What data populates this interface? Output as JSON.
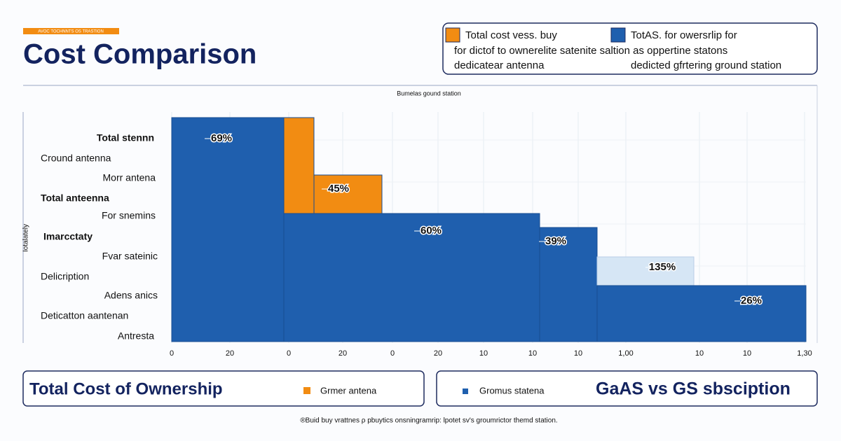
{
  "header": {
    "kicker": "AVOC TOCHNNTS OS TRASTION",
    "title": "Cost Comparison"
  },
  "legend": {
    "items": [
      {
        "color": "#f28c12",
        "label": "Total cost vess. buy"
      },
      {
        "color": "#1f5fae",
        "label": "TotAS. for owersrlip for"
      }
    ],
    "line2": "for dictof to ownerelite satenite saltion as oppertine statons",
    "line3a": "dedicatear antenna",
    "line3b": "dedicted gfrtering ground station"
  },
  "chart": {
    "subtitle": "Bumelas gound station",
    "y_axis_title": "Iotalately",
    "row_labels": [
      "Total stennn",
      "Cround antenna",
      "Morr antena",
      "Total anteenna",
      "For snemins",
      "Imarcctaty",
      "Fvar sateinic",
      "Delicription",
      "Adens anics",
      "Deticatton aantenan",
      "Antresta"
    ],
    "x_tick_labels": [
      "0",
      "20",
      "0",
      "20",
      "0",
      "20",
      "10",
      "10",
      "10",
      "1,00",
      "10",
      "10",
      "1,30"
    ],
    "segments": [
      {
        "label": "69%",
        "color": "#1f5fae"
      },
      {
        "label": "45%",
        "color": "#f28c12"
      },
      {
        "label": "60%",
        "color": "#1f5fae"
      },
      {
        "label": "39%",
        "color": "#1f5fae"
      },
      {
        "label": "135%",
        "color": "#d6e6f5"
      },
      {
        "label": "26%",
        "color": "#1f5fae"
      }
    ]
  },
  "footer": {
    "left_title": "Total Cost of Ownership",
    "left_legend": "Grmer antena",
    "right_legend": "Gromus statena",
    "right_title": "GaAS vs GS sbsciption"
  },
  "note": "®Buid buy vrattnes ρ pbuytics onsningramrip: lpotet sv's groumrictor themd station."
}
